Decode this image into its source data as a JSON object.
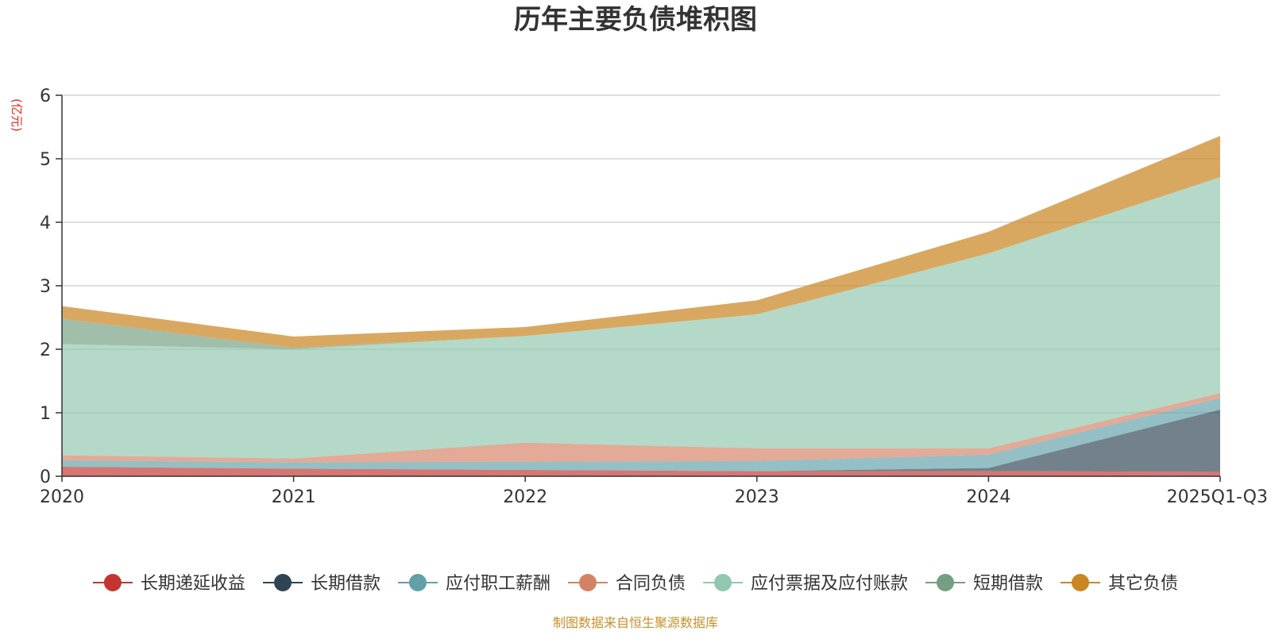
{
  "chart_data": {
    "type": "area",
    "stacked": true,
    "title": "历年主要负债堆积图",
    "unit_label": "(亿元)",
    "source_note": "制图数据来自恒生聚源数据库",
    "categories": [
      "2020",
      "2021",
      "2022",
      "2023",
      "2024",
      "2025Q1-Q3"
    ],
    "yticks": [
      "0",
      "1",
      "2",
      "3",
      "4",
      "5",
      "6"
    ],
    "ylim": [
      0,
      6
    ],
    "grid": true,
    "legend_position": "bottom",
    "series": [
      {
        "name": "长期递延收益",
        "color": "#c23531",
        "values": [
          0.15,
          0.12,
          0.1,
          0.08,
          0.08,
          0.07
        ]
      },
      {
        "name": "长期借款",
        "color": "#2f4554",
        "values": [
          0.0,
          0.0,
          0.0,
          0.0,
          0.05,
          0.98
        ]
      },
      {
        "name": "应付职工薪酬",
        "color": "#61a0a8",
        "values": [
          0.1,
          0.1,
          0.13,
          0.16,
          0.21,
          0.18
        ]
      },
      {
        "name": "合同负债",
        "color": "#d48265",
        "values": [
          0.08,
          0.06,
          0.3,
          0.2,
          0.1,
          0.08
        ]
      },
      {
        "name": "应付票据及应付账款",
        "color": "#91c7ae",
        "values": [
          1.75,
          1.72,
          1.68,
          2.11,
          3.07,
          3.4
        ]
      },
      {
        "name": "短期借款",
        "color": "#749f83",
        "values": [
          0.4,
          0.02,
          0.0,
          0.0,
          0.0,
          0.0
        ]
      },
      {
        "name": "其它负债",
        "color": "#ca8622",
        "values": [
          0.2,
          0.18,
          0.14,
          0.22,
          0.34,
          0.65
        ]
      }
    ]
  }
}
